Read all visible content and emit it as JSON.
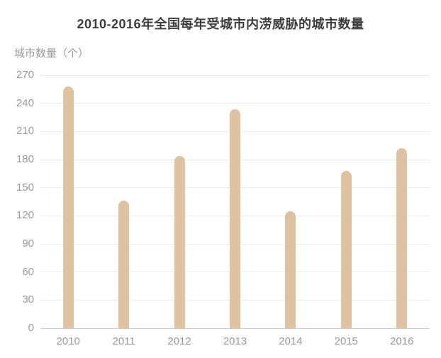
{
  "chart_data": {
    "type": "bar",
    "title": "2010-2016年全国每年受城市内涝威胁的城市数量",
    "ylabel": "城市数量（个）",
    "xlabel": "",
    "categories": [
      "2010",
      "2011",
      "2012",
      "2013",
      "2014",
      "2015",
      "2016"
    ],
    "values": [
      258,
      136,
      184,
      234,
      125,
      168,
      192
    ],
    "ylim": [
      0,
      270
    ],
    "yticks": [
      0,
      30,
      60,
      90,
      120,
      150,
      180,
      210,
      240,
      270
    ],
    "grid": true,
    "legend": false,
    "bar_color": "#dfc2a2",
    "grid_color": "#ececec",
    "axis_line_color": "#cccccc",
    "tick_label_color": "#999999",
    "title_color": "#3d3d3d",
    "background_color": "#ffffff"
  }
}
